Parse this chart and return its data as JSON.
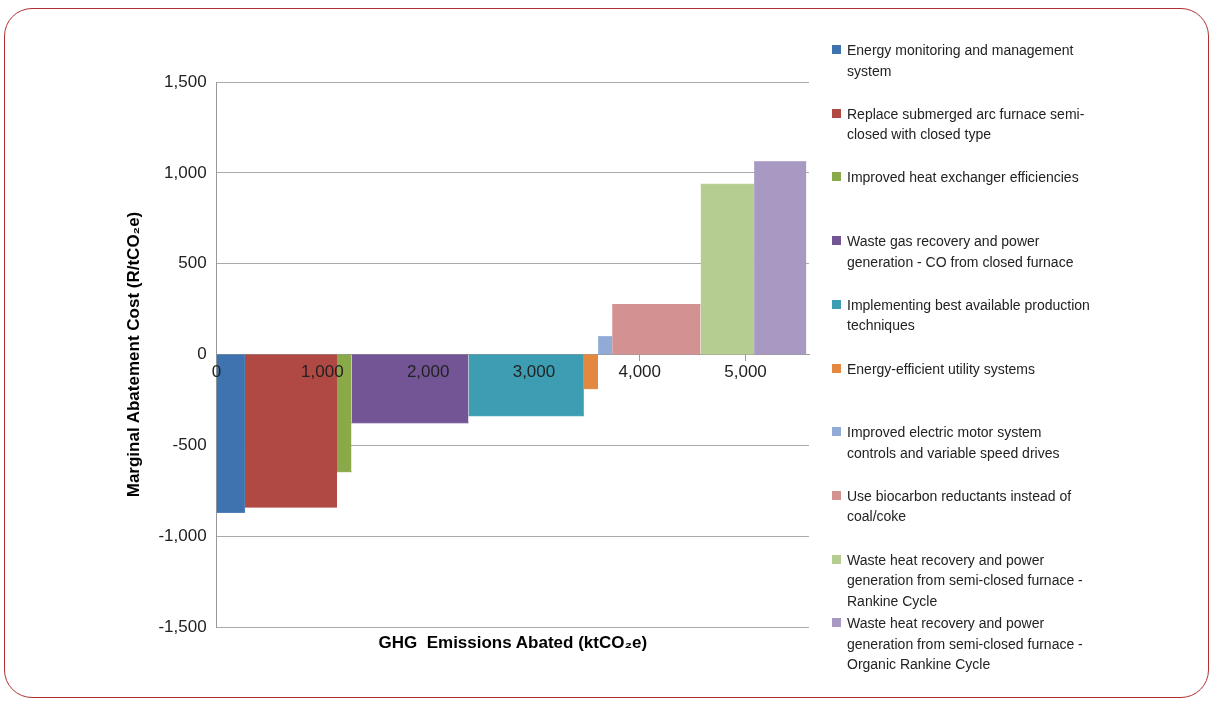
{
  "chart_data": {
    "type": "area",
    "xlabel": "GHG  Emissions Abated (ktCO₂e)",
    "ylabel": "Marginal Abatement Cost (R/tCO₂e)",
    "xlim": [
      0,
      5600
    ],
    "xticks": [
      {
        "value": 0,
        "label": "0"
      },
      {
        "value": 1000,
        "label": "1,000"
      },
      {
        "value": 2000,
        "label": "2,000"
      },
      {
        "value": 3000,
        "label": "3,000"
      },
      {
        "value": 4000,
        "label": "4,000"
      },
      {
        "value": 5000,
        "label": "5,000"
      }
    ],
    "ylim": [
      -1500,
      1500
    ],
    "yticks": [
      {
        "value": -1500,
        "label": "-1,500"
      },
      {
        "value": -1000,
        "label": "-1,000"
      },
      {
        "value": -500,
        "label": "-500"
      },
      {
        "value": 0,
        "label": "0"
      },
      {
        "value": 500,
        "label": "500"
      },
      {
        "value": 1000,
        "label": "1,000"
      },
      {
        "value": 1500,
        "label": "1,500"
      }
    ],
    "grid": "y",
    "legend": "right",
    "series": [
      {
        "name": "Energy monitoring and management system",
        "color": "#3f73b0",
        "x": [
          0,
          268
        ],
        "values": [
          -869,
          -869
        ]
      },
      {
        "name": "Replace submerged arc furnace semi-closed with closed type",
        "color": "#b04843",
        "x": [
          268,
          1138
        ],
        "values": [
          -840,
          -840
        ]
      },
      {
        "name": "Improved heat exchanger efficiencies",
        "color": "#8aaa4a",
        "x": [
          1138,
          1275
        ],
        "values": [
          -645,
          -645
        ]
      },
      {
        "name": "Waste gas recovery and power generation - CO from closed furnace",
        "color": "#735596",
        "x": [
          1275,
          2381
        ],
        "values": [
          -376,
          -376
        ]
      },
      {
        "name": "Implementing best available production techniques",
        "color": "#3c9db3",
        "x": [
          2381,
          3472
        ],
        "values": [
          -337,
          -337
        ]
      },
      {
        "name": "Energy-efficient utility systems",
        "color": "#e3883e",
        "x": [
          3472,
          3606
        ],
        "values": [
          -188,
          -188
        ]
      },
      {
        "name": "Improved electric motor system controls and variable speed drives",
        "color": "#92aad6",
        "x": [
          3606,
          3739
        ],
        "values": [
          98,
          98
        ]
      },
      {
        "name": "Use biocarbon reductants instead of coal/coke",
        "color": "#d39291",
        "x": [
          3739,
          4575
        ],
        "values": [
          275,
          275
        ]
      },
      {
        "name": "Waste heat recovery and power generation from semi-closed furnace - Rankine Cycle",
        "color": "#b6cd92",
        "x": [
          4575,
          5081
        ],
        "values": [
          937,
          937
        ]
      },
      {
        "name": "Waste heat recovery and power generation from semi-closed furnace - Organic Rankine Cycle",
        "color": "#a899c2",
        "x": [
          5081,
          5575
        ],
        "values": [
          1061,
          1061
        ]
      }
    ]
  }
}
